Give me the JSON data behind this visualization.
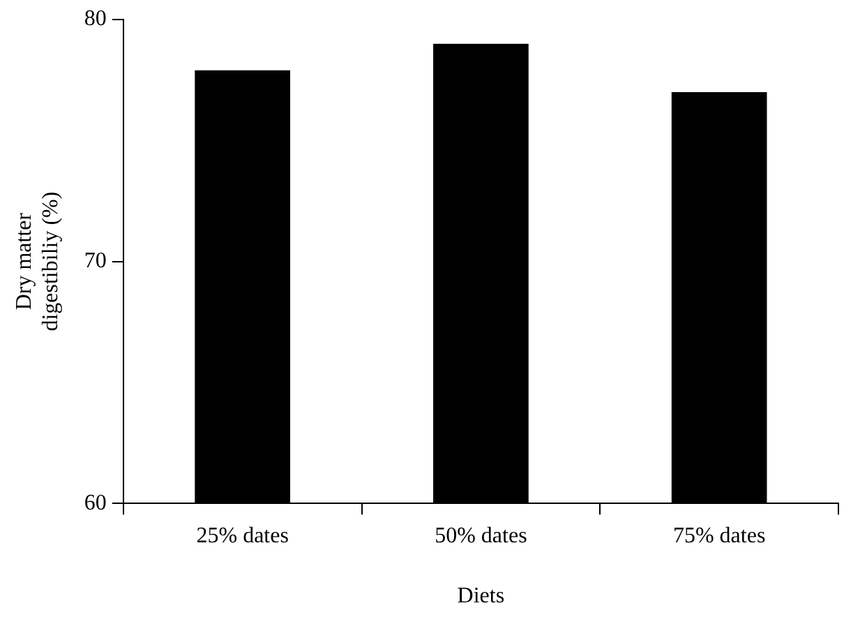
{
  "chart_data": {
    "type": "bar",
    "xlabel": "Diets",
    "ylabel": "Dry matter\ndigestibiliy (%)",
    "categories": [
      "25% dates",
      "50% dates",
      "75% dates"
    ],
    "values": [
      77.9,
      79.0,
      77.0
    ],
    "color": "#000000",
    "ylim": [
      60,
      80
    ],
    "yticks": [
      60,
      70,
      80
    ],
    "grid": false,
    "legend": false
  }
}
